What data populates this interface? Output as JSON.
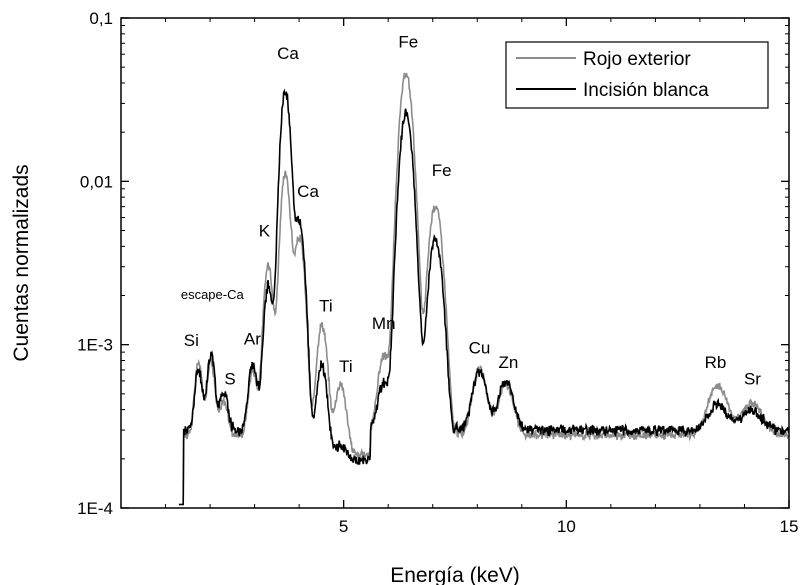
{
  "chart_data": {
    "type": "line",
    "xlabel": "Energía (keV)",
    "ylabel": "Cuentas normalizads",
    "xlim": [
      0,
      15
    ],
    "ylim": [
      0.0001,
      0.1
    ],
    "yscale": "log",
    "grid": false,
    "legend_position": "top-right",
    "x_ticks": [
      {
        "value": 5,
        "label": "5"
      },
      {
        "value": 10,
        "label": "10"
      },
      {
        "value": 15,
        "label": "15"
      }
    ],
    "y_ticks": [
      {
        "value": 0.1,
        "label": "0,1"
      },
      {
        "value": 0.01,
        "label": "0,01"
      },
      {
        "value": 0.001,
        "label": "1E-3"
      },
      {
        "value": 0.0001,
        "label": "1E-4"
      }
    ],
    "series": [
      {
        "name": "Rojo exterior",
        "color": "#8c8c8c",
        "baseline": 0.00028,
        "noise": 0.05,
        "peaks": [
          {
            "x": 1.74,
            "y": 0.00078
          },
          {
            "x": 2.02,
            "y": 0.0008
          },
          {
            "x": 2.31,
            "y": 0.00045
          },
          {
            "x": 2.96,
            "y": 0.0007
          },
          {
            "x": 3.31,
            "y": 0.0031
          },
          {
            "x": 3.69,
            "y": 0.011
          },
          {
            "x": 4.01,
            "y": 0.0045
          },
          {
            "x": 4.51,
            "y": 0.0014
          },
          {
            "x": 4.93,
            "y": 0.00065
          },
          {
            "x": 5.9,
            "y": 0.00085
          },
          {
            "x": 6.4,
            "y": 0.045
          },
          {
            "x": 7.06,
            "y": 0.0072
          },
          {
            "x": 8.05,
            "y": 0.0007
          },
          {
            "x": 8.64,
            "y": 0.00058
          },
          {
            "x": 13.4,
            "y": 0.00056
          },
          {
            "x": 14.17,
            "y": 0.00044
          }
        ]
      },
      {
        "name": "Incisión blanca",
        "color": "#000000",
        "baseline": 0.0003,
        "noise": 0.06,
        "peaks": [
          {
            "x": 1.74,
            "y": 0.0007
          },
          {
            "x": 2.02,
            "y": 0.00088
          },
          {
            "x": 2.31,
            "y": 0.00052
          },
          {
            "x": 2.96,
            "y": 0.00076
          },
          {
            "x": 3.31,
            "y": 0.0023
          },
          {
            "x": 3.69,
            "y": 0.036
          },
          {
            "x": 4.01,
            "y": 0.0055
          },
          {
            "x": 4.51,
            "y": 0.00085
          },
          {
            "x": 4.93,
            "y": 0.00035
          },
          {
            "x": 5.9,
            "y": 0.00058
          },
          {
            "x": 6.4,
            "y": 0.026
          },
          {
            "x": 7.06,
            "y": 0.0045
          },
          {
            "x": 8.05,
            "y": 0.00068
          },
          {
            "x": 8.64,
            "y": 0.0006
          },
          {
            "x": 13.4,
            "y": 0.00043
          },
          {
            "x": 14.17,
            "y": 0.0004
          }
        ]
      }
    ],
    "annotations": [
      {
        "text": "Si",
        "x": 1.58,
        "y": 0.00098
      },
      {
        "text": "escape-Ca",
        "x": 2.05,
        "y": 0.0019
      },
      {
        "text": "S",
        "x": 2.45,
        "y": 0.00057
      },
      {
        "text": "Ar",
        "x": 2.95,
        "y": 0.001
      },
      {
        "text": "K",
        "x": 3.22,
        "y": 0.0046
      },
      {
        "text": "Ca",
        "x": 3.75,
        "y": 0.056
      },
      {
        "text": "Ca",
        "x": 4.2,
        "y": 0.008
      },
      {
        "text": "Ti",
        "x": 4.6,
        "y": 0.0016
      },
      {
        "text": "Ti",
        "x": 5.05,
        "y": 0.00068
      },
      {
        "text": "Mn",
        "x": 5.9,
        "y": 0.00125
      },
      {
        "text": "Fe",
        "x": 6.45,
        "y": 0.066
      },
      {
        "text": "Fe",
        "x": 7.2,
        "y": 0.0108
      },
      {
        "text": "Cu",
        "x": 8.05,
        "y": 0.00088
      },
      {
        "text": "Zn",
        "x": 8.7,
        "y": 0.00072
      },
      {
        "text": "Rb",
        "x": 13.35,
        "y": 0.00072
      },
      {
        "text": "Sr",
        "x": 14.18,
        "y": 0.00057
      }
    ]
  }
}
